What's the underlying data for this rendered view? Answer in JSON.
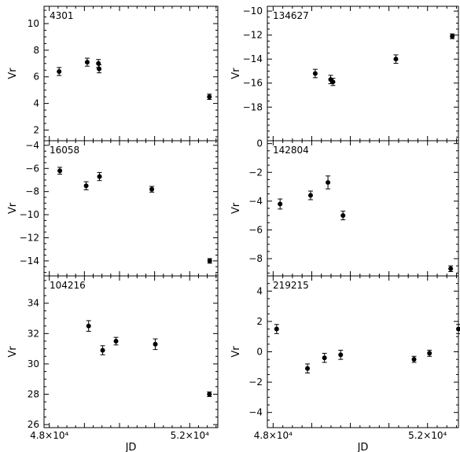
{
  "chart_data": [
    {
      "type": "scatter",
      "panel_label": "4301",
      "ylabel": "Vr",
      "xlabel": "",
      "ylim": [
        1.2,
        11.3
      ],
      "yticks": [
        2,
        4,
        6,
        8,
        10
      ],
      "points": [
        {
          "jd": 48280,
          "vr": 6.4,
          "err": 0.3
        },
        {
          "jd": 49080,
          "vr": 7.1,
          "err": 0.3
        },
        {
          "jd": 49400,
          "vr": 7.0,
          "err": 0.3
        },
        {
          "jd": 49420,
          "vr": 6.6,
          "err": 0.3
        },
        {
          "jd": 52560,
          "vr": 4.5,
          "err": 0.2
        }
      ]
    },
    {
      "type": "scatter",
      "panel_label": "134627",
      "ylabel": "Vr",
      "xlabel": "",
      "ylim": [
        -20.8,
        -9.6
      ],
      "yticks": [
        -18,
        -16,
        -14,
        -12,
        -10
      ],
      "points": [
        {
          "jd": 49090,
          "vr": -15.2,
          "err": 0.35
        },
        {
          "jd": 49490,
          "vr": -15.7,
          "err": 0.35
        },
        {
          "jd": 49550,
          "vr": -15.9,
          "err": 0.3
        },
        {
          "jd": 51180,
          "vr": -14.0,
          "err": 0.35
        },
        {
          "jd": 52640,
          "vr": -12.1,
          "err": 0.2
        }
      ]
    },
    {
      "type": "scatter",
      "panel_label": "16058",
      "ylabel": "Vr",
      "xlabel": "",
      "ylim": [
        -15.3,
        -3.6
      ],
      "yticks": [
        -14,
        -12,
        -10,
        -8,
        -6,
        -4
      ],
      "points": [
        {
          "jd": 48300,
          "vr": -6.2,
          "err": 0.3
        },
        {
          "jd": 49050,
          "vr": -7.5,
          "err": 0.35
        },
        {
          "jd": 49430,
          "vr": -6.7,
          "err": 0.35
        },
        {
          "jd": 50920,
          "vr": -7.8,
          "err": 0.25
        },
        {
          "jd": 52570,
          "vr": -14.0,
          "err": 0.2
        }
      ]
    },
    {
      "type": "scatter",
      "panel_label": "142804",
      "ylabel": "Vr",
      "xlabel": "",
      "ylim": [
        -9.2,
        0.2
      ],
      "yticks": [
        -8,
        -6,
        -4,
        -2,
        0
      ],
      "points": [
        {
          "jd": 48180,
          "vr": -4.2,
          "err": 0.35
        },
        {
          "jd": 48970,
          "vr": -3.6,
          "err": 0.3
        },
        {
          "jd": 49420,
          "vr": -2.7,
          "err": 0.45
        },
        {
          "jd": 49810,
          "vr": -5.0,
          "err": 0.3
        },
        {
          "jd": 52600,
          "vr": -8.7,
          "err": 0.2
        }
      ]
    },
    {
      "type": "scatter",
      "panel_label": "104216",
      "ylabel": "Vr",
      "xlabel": "JD",
      "ylim": [
        25.8,
        35.8
      ],
      "yticks": [
        26,
        28,
        30,
        32,
        34
      ],
      "xticks": [
        "4.8×10⁴",
        "5.2×10⁴"
      ],
      "points": [
        {
          "jd": 49120,
          "vr": 32.5,
          "err": 0.35
        },
        {
          "jd": 49520,
          "vr": 30.9,
          "err": 0.3
        },
        {
          "jd": 49900,
          "vr": 31.5,
          "err": 0.25
        },
        {
          "jd": 51020,
          "vr": 31.3,
          "err": 0.35
        },
        {
          "jd": 52560,
          "vr": 28.0,
          "err": 0.15
        }
      ]
    },
    {
      "type": "scatter",
      "panel_label": "219215",
      "ylabel": "Vr",
      "xlabel": "JD",
      "ylim": [
        -5.0,
        5.0
      ],
      "yticks": [
        -4,
        -2,
        0,
        2,
        4
      ],
      "xticks": [
        "4.8×10⁴",
        "5.2×10⁴"
      ],
      "points": [
        {
          "jd": 48090,
          "vr": 1.5,
          "err": 0.3
        },
        {
          "jd": 48890,
          "vr": -1.1,
          "err": 0.3
        },
        {
          "jd": 49330,
          "vr": -0.4,
          "err": 0.3
        },
        {
          "jd": 49750,
          "vr": -0.2,
          "err": 0.3
        },
        {
          "jd": 51650,
          "vr": -0.5,
          "err": 0.2
        },
        {
          "jd": 52050,
          "vr": -0.1,
          "err": 0.2
        },
        {
          "jd": 52800,
          "vr": 1.5,
          "err": 0.3
        }
      ]
    }
  ]
}
